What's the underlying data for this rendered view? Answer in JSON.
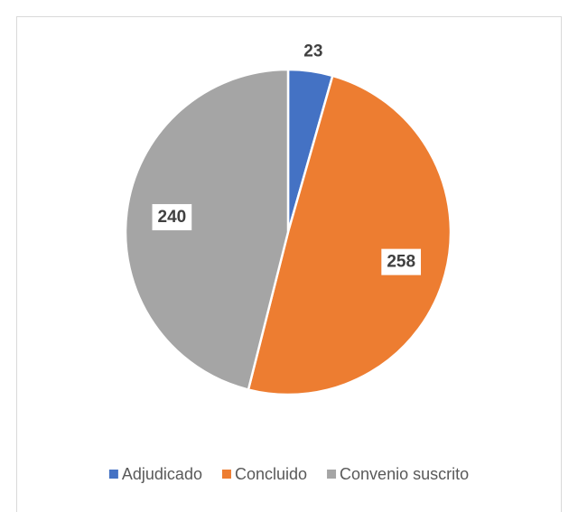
{
  "chart_data": {
    "type": "pie",
    "categories": [
      "Adjudicado",
      "Concluido",
      "Convenio suscrito"
    ],
    "values": [
      23,
      258,
      240
    ],
    "colors": [
      "#4472c4",
      "#ed7d31",
      "#a5a5a5"
    ],
    "legend": "bottom"
  }
}
